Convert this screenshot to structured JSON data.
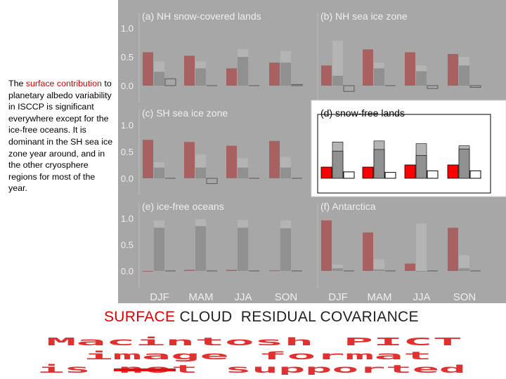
{
  "description": {
    "before": "The ",
    "highlight": "surface contribution",
    "after": " to planetary albedo variability in ISCCP is significant everywhere except for the ice-free oceans.  It is dominant in the SH sea ice zone year around, and in the other cryosphere regions for most of the year."
  },
  "legend": {
    "surface": "SURFACE",
    "cloud": "CLOUD",
    "residual": "RESIDUAL",
    "covariance": "COVARIANCE"
  },
  "placeholder": {
    "line1": "Macintosh PICT",
    "line2": "image format",
    "line3": "is not supported"
  },
  "colors": {
    "panel_bg": "#a7a7a7",
    "highlight_bg": "#ffffff",
    "surface_dim": "#a86060",
    "surface_bright": "#ff0000",
    "cloud": "#909090",
    "residual": "#b4b4b4",
    "covariance": "#ffffff",
    "text_dim": "#efefef",
    "text_dark": "#000000",
    "placeholder_text": "#e03030"
  },
  "chart_data": {
    "type": "bar",
    "categories": [
      "DJF",
      "MAM",
      "JJA",
      "SON"
    ],
    "yticks": [
      "1.0",
      "0.5",
      "0.0"
    ],
    "ylim": [
      -0.1,
      1.05
    ],
    "series_order": [
      "surface",
      "cloud",
      "residual",
      "covariance"
    ],
    "highlighted_panel": "d",
    "panels": [
      {
        "id": "a",
        "title": "(a) NH snow-covered lands",
        "surface": [
          0.58,
          0.52,
          0.3,
          0.4
        ],
        "cloud": [
          0.24,
          0.3,
          0.5,
          0.4
        ],
        "residual": [
          0.42,
          0.42,
          0.63,
          0.6
        ],
        "covariance": [
          0.12,
          0.0,
          0.0,
          0.02
        ]
      },
      {
        "id": "b",
        "title": "(b) NH sea ice zone",
        "surface": [
          0.35,
          0.63,
          0.58,
          0.55
        ],
        "cloud": [
          0.17,
          0.3,
          0.25,
          0.35
        ],
        "residual": [
          0.78,
          0.4,
          0.35,
          0.5
        ],
        "covariance": [
          -0.1,
          0.0,
          -0.05,
          -0.03
        ]
      },
      {
        "id": "c",
        "title": "(c) SH sea ice zone",
        "surface": [
          0.72,
          0.68,
          0.61,
          0.7
        ],
        "cloud": [
          0.2,
          0.2,
          0.2,
          0.2
        ],
        "residual": [
          0.3,
          0.45,
          0.38,
          0.4
        ],
        "covariance": [
          0.0,
          -0.1,
          0.0,
          0.0
        ]
      },
      {
        "id": "d",
        "title": "(d) snow-free lands",
        "surface": [
          0.21,
          0.21,
          0.25,
          0.25
        ],
        "cloud": [
          0.51,
          0.54,
          0.43,
          0.55
        ],
        "residual": [
          0.68,
          0.7,
          0.65,
          0.61
        ],
        "covariance": [
          0.12,
          0.11,
          0.14,
          0.14
        ]
      },
      {
        "id": "e",
        "title": "(e) ice-free oceans",
        "surface": [
          0.0,
          0.02,
          0.02,
          0.01
        ],
        "cloud": [
          0.82,
          0.85,
          0.82,
          0.81
        ],
        "residual": [
          0.96,
          0.98,
          0.97,
          0.96
        ],
        "covariance": [
          0.0,
          0.0,
          0.0,
          0.0
        ]
      },
      {
        "id": "f",
        "title": "(f) Antarctica",
        "surface": [
          0.96,
          0.73,
          0.14,
          0.82
        ],
        "cloud": [
          0.05,
          0.03,
          0.0,
          0.05
        ],
        "residual": [
          0.12,
          0.22,
          0.9,
          0.3
        ],
        "covariance": [
          0.0,
          0.0,
          0.0,
          0.0
        ]
      }
    ]
  }
}
